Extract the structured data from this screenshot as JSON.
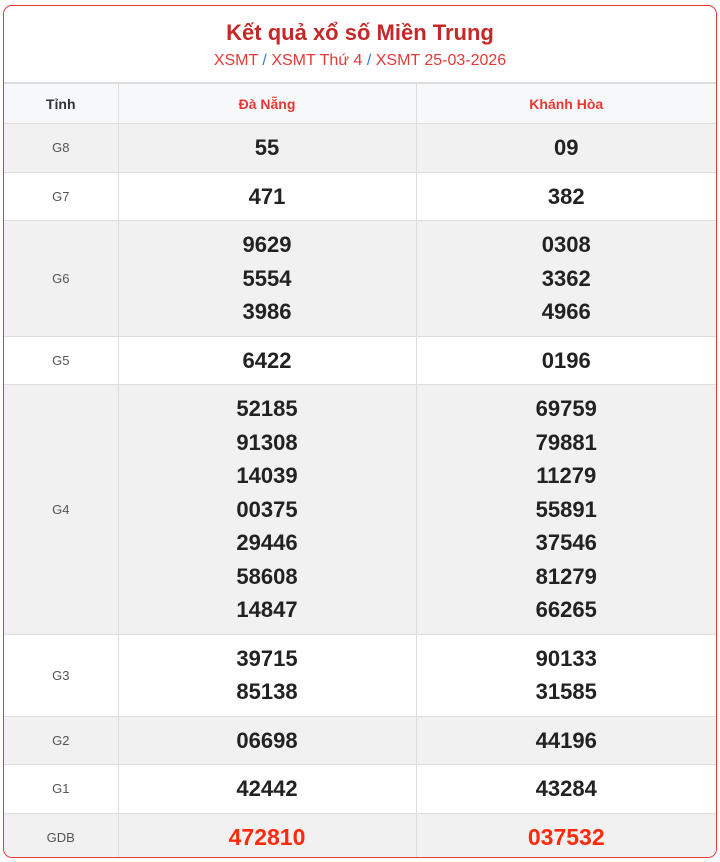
{
  "title": "Kết quả xổ số Miền Trung",
  "breadcrumb": [
    "XSMT",
    "XSMT Thứ 4",
    "XSMT 25-03-2026"
  ],
  "breadcrumb_sep": "/",
  "columns": [
    "Tỉnh",
    "Đà Nẵng",
    "Khánh Hòa"
  ],
  "rows": [
    {
      "prize": "G8",
      "c1": [
        "55"
      ],
      "c2": [
        "09"
      ]
    },
    {
      "prize": "G7",
      "c1": [
        "471"
      ],
      "c2": [
        "382"
      ]
    },
    {
      "prize": "G6",
      "c1": [
        "9629",
        "5554",
        "3986"
      ],
      "c2": [
        "0308",
        "3362",
        "4966"
      ]
    },
    {
      "prize": "G5",
      "c1": [
        "6422"
      ],
      "c2": [
        "0196"
      ]
    },
    {
      "prize": "G4",
      "c1": [
        "52185",
        "91308",
        "14039",
        "00375",
        "29446",
        "58608",
        "14847"
      ],
      "c2": [
        "69759",
        "79881",
        "11279",
        "55891",
        "37546",
        "81279",
        "66265"
      ]
    },
    {
      "prize": "G3",
      "c1": [
        "39715",
        "85138"
      ],
      "c2": [
        "90133",
        "31585"
      ]
    },
    {
      "prize": "G2",
      "c1": [
        "06698"
      ],
      "c2": [
        "44196"
      ]
    },
    {
      "prize": "G1",
      "c1": [
        "42442"
      ],
      "c2": [
        "43284"
      ]
    },
    {
      "prize": "GDB",
      "c1": [
        "472810"
      ],
      "c2": [
        "037532"
      ]
    }
  ],
  "colors": {
    "accent": "#e53935",
    "title": "#c62828",
    "jackpot": "#ff2a0d"
  }
}
